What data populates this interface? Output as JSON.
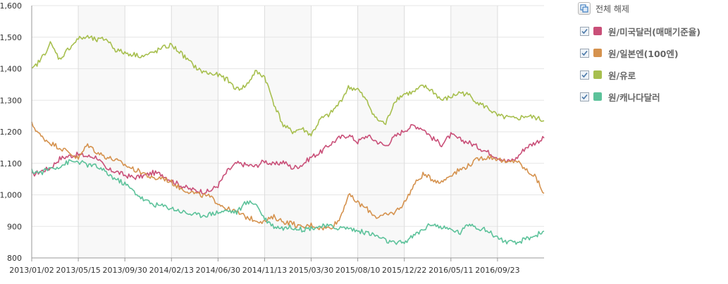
{
  "chart_data": {
    "type": "line",
    "title": "",
    "xlabel": "",
    "ylabel": "",
    "ylim": [
      800,
      1600
    ],
    "y_ticks": [
      "1,600",
      "1,500",
      "1,400",
      "1,300",
      "1,200",
      "1,100",
      "1,000",
      "900",
      "800"
    ],
    "x_ticks": [
      "2013/01/02",
      "2013/05/15",
      "2013/09/30",
      "2014/02/13",
      "2014/06/30",
      "2014/11/13",
      "2015/03/30",
      "2015/08/10",
      "2015/12/22",
      "2016/05/11",
      "2016/09/23"
    ],
    "grid": true,
    "legend_position": "right",
    "series": [
      {
        "name": "원/미국달러(매매기준율)",
        "color": "#c94f78",
        "values": [
          1063,
          1075,
          1085,
          1115,
          1123,
          1128,
          1122,
          1120,
          1080,
          1075,
          1062,
          1055,
          1060,
          1070,
          1065,
          1045,
          1030,
          1018,
          1012,
          1010,
          1030,
          1075,
          1100,
          1095,
          1090,
          1108,
          1095,
          1105,
          1085,
          1095,
          1120,
          1135,
          1160,
          1180,
          1190,
          1168,
          1188,
          1170,
          1155,
          1185,
          1205,
          1220,
          1210,
          1180,
          1160,
          1190,
          1175,
          1165,
          1150,
          1135,
          1120,
          1105,
          1115,
          1150,
          1165,
          1180
        ]
      },
      {
        "name": "원/일본엔(100엔)",
        "color": "#d5924e",
        "values": [
          1225,
          1185,
          1165,
          1150,
          1135,
          1115,
          1160,
          1135,
          1120,
          1110,
          1095,
          1080,
          1070,
          1050,
          1055,
          1040,
          1020,
          1010,
          1000,
          995,
          975,
          955,
          945,
          930,
          920,
          915,
          930,
          915,
          910,
          895,
          905,
          895,
          895,
          920,
          1000,
          975,
          955,
          930,
          935,
          945,
          975,
          1030,
          1065,
          1050,
          1040,
          1065,
          1080,
          1095,
          1115,
          1120,
          1115,
          1100,
          1110,
          1080,
          1060,
          1005
        ]
      },
      {
        "name": "원/유로",
        "color": "#a7bf4e",
        "values": [
          1395,
          1430,
          1480,
          1430,
          1465,
          1495,
          1500,
          1490,
          1495,
          1460,
          1450,
          1445,
          1440,
          1450,
          1465,
          1475,
          1450,
          1420,
          1395,
          1385,
          1380,
          1365,
          1335,
          1345,
          1390,
          1375,
          1290,
          1220,
          1200,
          1210,
          1190,
          1240,
          1255,
          1290,
          1340,
          1335,
          1295,
          1240,
          1225,
          1300,
          1320,
          1325,
          1345,
          1330,
          1300,
          1310,
          1325,
          1315,
          1290,
          1275,
          1250,
          1245,
          1240,
          1250,
          1245,
          1235
        ]
      },
      {
        "name": "원/캐나다달러",
        "color": "#5cc29a",
        "values": [
          1075,
          1070,
          1085,
          1090,
          1105,
          1105,
          1095,
          1090,
          1070,
          1050,
          1035,
          1010,
          985,
          970,
          965,
          958,
          948,
          940,
          935,
          938,
          945,
          950,
          945,
          975,
          975,
          925,
          900,
          895,
          898,
          890,
          895,
          900,
          900,
          895,
          895,
          885,
          880,
          870,
          855,
          845,
          850,
          870,
          890,
          910,
          895,
          890,
          880,
          910,
          895,
          885,
          865,
          850,
          845,
          860,
          870,
          885
        ]
      }
    ]
  },
  "legend": {
    "reset_label": "전체 해제",
    "reset_icon": "copy-icon",
    "check_icon": "checkmark-icon"
  }
}
